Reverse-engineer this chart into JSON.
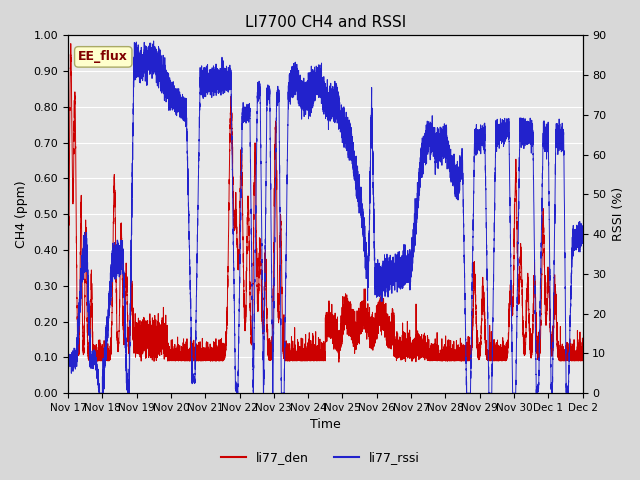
{
  "title": "LI7700 CH4 and RSSI",
  "xlabel": "Time",
  "ylabel_left": "CH4 (ppm)",
  "ylabel_right": "RSSI (%)",
  "ylim_left": [
    0.0,
    1.0
  ],
  "ylim_right": [
    0,
    90
  ],
  "yticks_left": [
    0.0,
    0.1,
    0.2,
    0.3,
    0.4,
    0.5,
    0.6,
    0.7,
    0.8,
    0.9,
    1.0
  ],
  "yticks_right": [
    0,
    10,
    20,
    30,
    40,
    50,
    60,
    70,
    80,
    90
  ],
  "xtick_labels": [
    "Nov 17",
    "Nov 18",
    "Nov 19",
    "Nov 20",
    "Nov 21",
    "Nov 22",
    "Nov 23",
    "Nov 24",
    "Nov 25",
    "Nov 26",
    "Nov 27",
    "Nov 28",
    "Nov 29",
    "Nov 30",
    "Dec 1",
    "Dec 2"
  ],
  "color_red": "#cc0000",
  "color_blue": "#2222cc",
  "legend_labels": [
    "li77_den",
    "li77_rssi"
  ],
  "annotation_text": "EE_flux",
  "bg_color": "#d8d8d8",
  "plot_bg_color": "#e8e8e8",
  "title_fontsize": 11,
  "label_fontsize": 9,
  "tick_fontsize": 8
}
